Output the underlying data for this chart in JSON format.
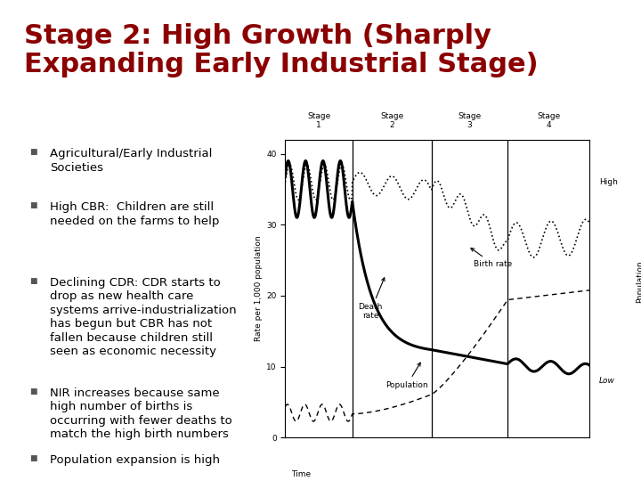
{
  "title_line1": "Stage 2: High Growth (Sharply",
  "title_line2": "Expanding Early Industrial Stage)",
  "title_color": "#8B0000",
  "background_color": "#FFFFFF",
  "border_color": "#B8860B",
  "left_bar_color": "#8B0000",
  "bullet_points": [
    "Agricultural/Early Industrial\nSocieties",
    "High CBR:  Children are still\nneeded on the farms to help",
    "Declining CDR: CDR starts to\ndrop as new health care\nsystems arrive-industrialization\nhas begun but CBR has not\nfallen because children still\nseen as economic necessity",
    "NIR increases because same\nhigh number of births is\noccurring with fewer deaths to\nmatch the high birth numbers",
    "Population expansion is high"
  ],
  "bullet_color": "#555555",
  "bullet_text_color": "#000000",
  "title_fontsize": 22,
  "bullet_fontsize": 9.5
}
